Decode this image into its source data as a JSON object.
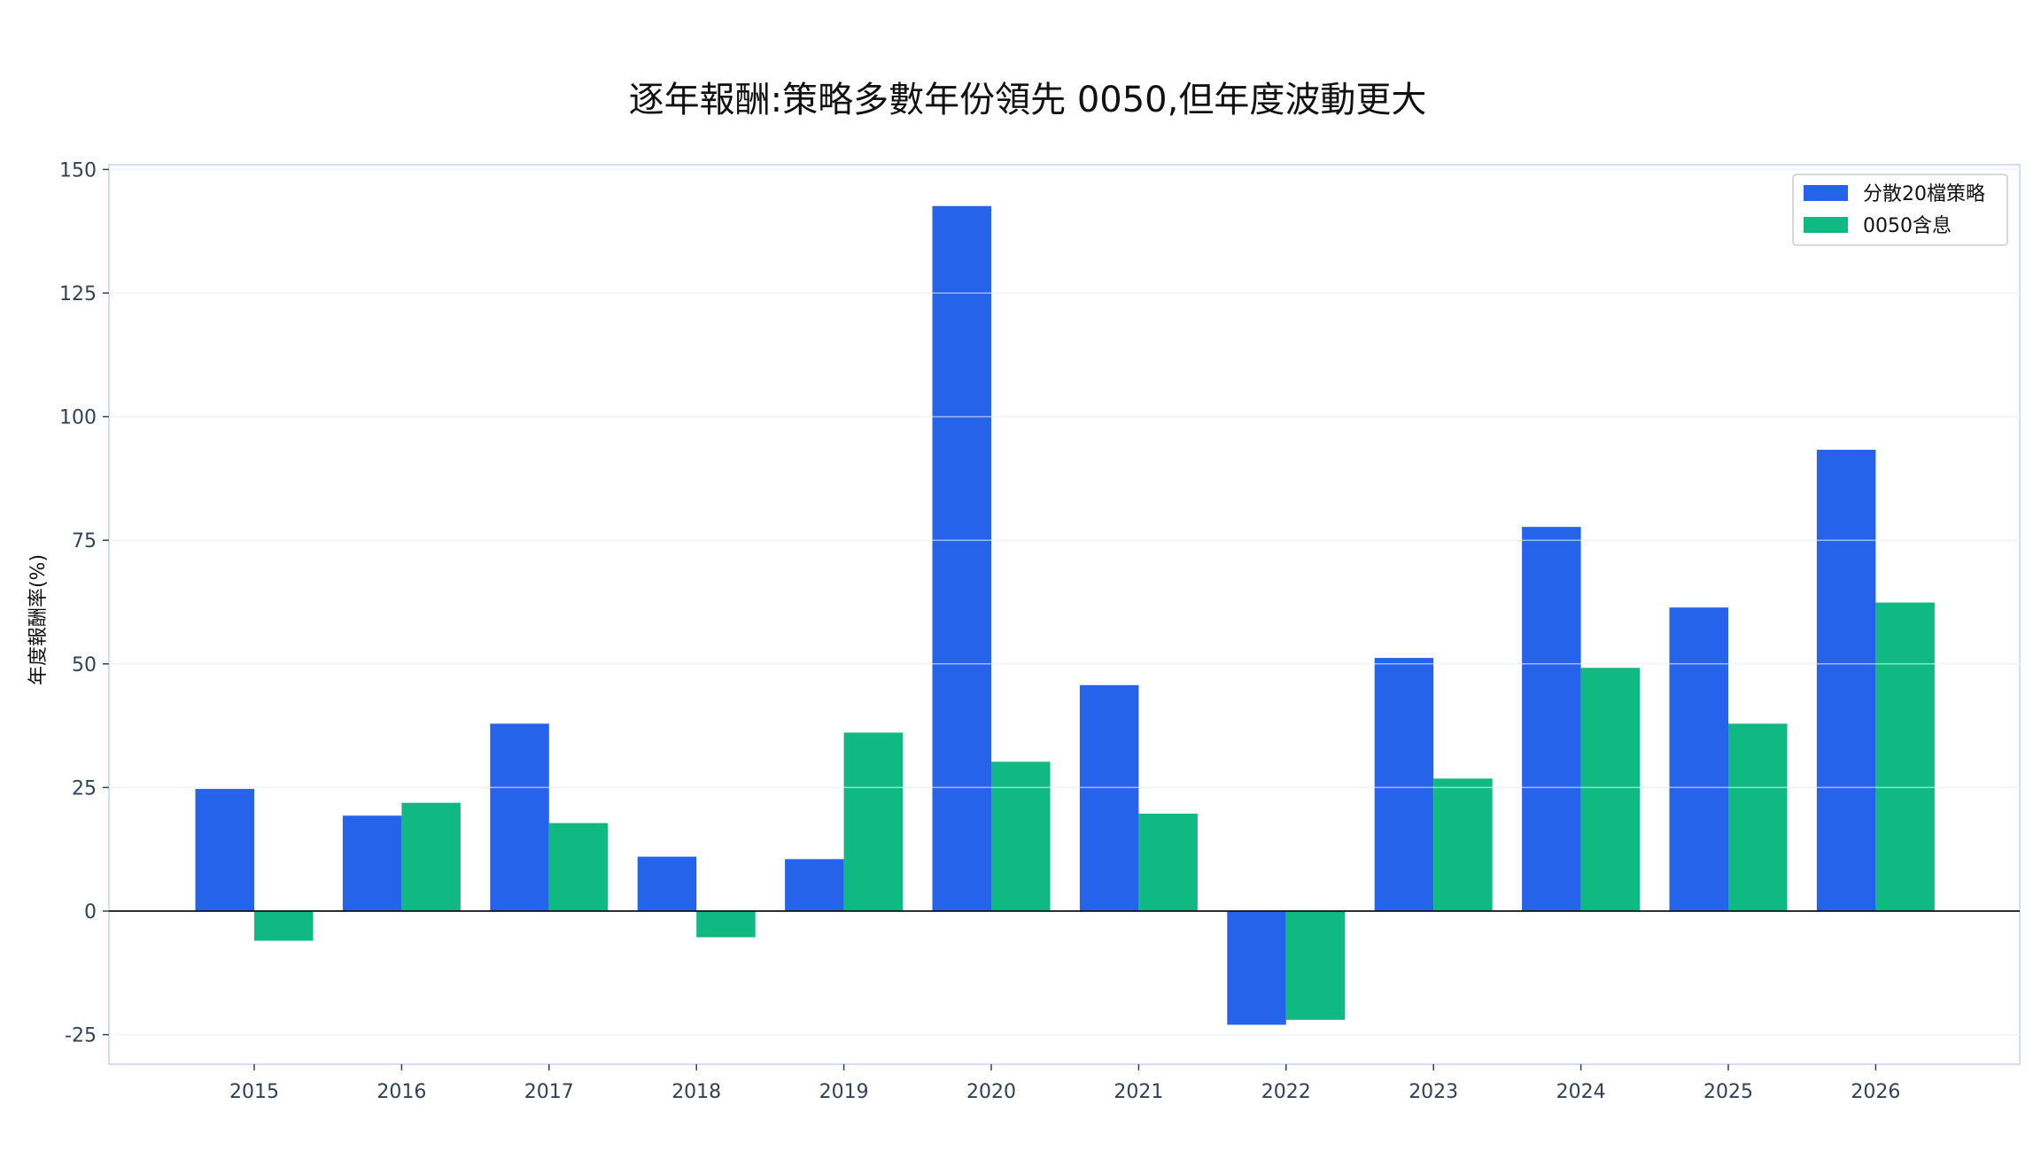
{
  "chart_data": {
    "type": "bar",
    "title": "逐年報酬:策略多數年份領先 0050,但年度波動更大",
    "xlabel": "",
    "ylabel": "年度報酬率(%)",
    "categories": [
      "2015",
      "2016",
      "2017",
      "2018",
      "2019",
      "2020",
      "2021",
      "2022",
      "2023",
      "2024",
      "2025",
      "2026"
    ],
    "series": [
      {
        "name": "分散20檔策略",
        "color": "#2563eb",
        "values": [
          24.7,
          19.3,
          37.9,
          11.0,
          10.5,
          142.6,
          45.7,
          -23.0,
          51.2,
          77.7,
          61.4,
          93.3
        ]
      },
      {
        "name": "0050含息",
        "color": "#10b981",
        "values": [
          -6.0,
          21.9,
          17.8,
          -5.3,
          36.1,
          30.2,
          19.7,
          -22.0,
          26.8,
          49.2,
          37.9,
          62.4
        ]
      }
    ],
    "yticks": [
      "-25",
      "0",
      "25",
      "50",
      "75",
      "100",
      "125",
      "150"
    ],
    "ytick_values": [
      -25,
      0,
      25,
      50,
      75,
      100,
      125,
      150
    ],
    "ylim": [
      -31,
      151
    ],
    "grid": true,
    "legend_position": "top-right"
  }
}
